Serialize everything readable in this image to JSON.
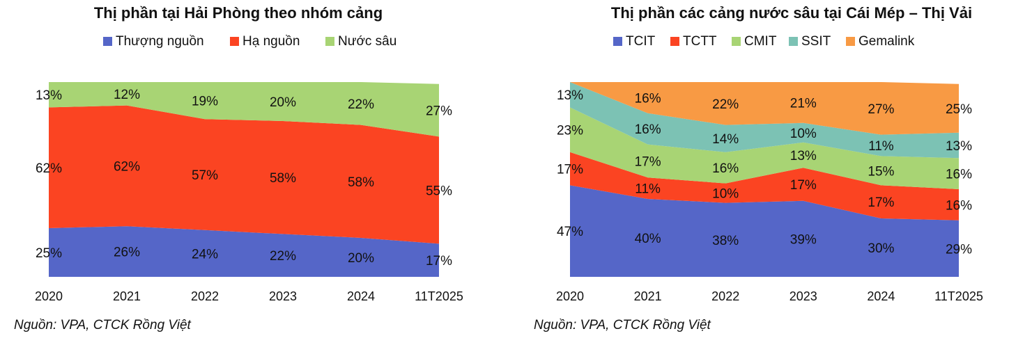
{
  "chart_data": [
    {
      "type": "area",
      "stacked": true,
      "title": "Thị phần tại Hải Phòng theo nhóm cảng",
      "categories": [
        "2020",
        "2021",
        "2022",
        "2023",
        "2024",
        "11T2025"
      ],
      "series": [
        {
          "name": "Thượng nguồn",
          "color": "#5566c8",
          "values": [
            25,
            26,
            24,
            22,
            20,
            17
          ],
          "labels": [
            "25%",
            "26%",
            "24%",
            "22%",
            "20%",
            "17%"
          ]
        },
        {
          "name": "Hạ nguồn",
          "color": "#fb4422",
          "values": [
            62,
            62,
            57,
            58,
            58,
            55
          ],
          "labels": [
            "62%",
            "62%",
            "57%",
            "58%",
            "58%",
            "55%"
          ]
        },
        {
          "name": "Nước sâu",
          "color": "#a8d474",
          "values": [
            13,
            12,
            19,
            20,
            22,
            27
          ],
          "labels": [
            "13%",
            "12%",
            "19%",
            "20%",
            "22%",
            "27%"
          ]
        }
      ],
      "ylim": [
        0,
        100
      ],
      "source": "Nguồn: VPA, CTCK Rồng Việt"
    },
    {
      "type": "area",
      "stacked": true,
      "title": "Thị phần các cảng nước sâu tại Cái Mép – Thị Vải",
      "categories": [
        "2020",
        "2021",
        "2022",
        "2023",
        "2024",
        "11T2025"
      ],
      "series": [
        {
          "name": "TCIT",
          "color": "#5566c8",
          "values": [
            47,
            40,
            38,
            39,
            30,
            29
          ],
          "labels": [
            "47%",
            "40%",
            "38%",
            "39%",
            "30%",
            "29%"
          ]
        },
        {
          "name": "TCTT",
          "color": "#fb4422",
          "values": [
            17,
            11,
            10,
            17,
            17,
            16
          ],
          "labels": [
            "17%",
            "11%",
            "10%",
            "17%",
            "17%",
            "16%"
          ]
        },
        {
          "name": "CMIT",
          "color": "#a8d474",
          "values": [
            23,
            17,
            16,
            13,
            15,
            16
          ],
          "labels": [
            "23%",
            "17%",
            "16%",
            "13%",
            "15%",
            "16%"
          ]
        },
        {
          "name": "SSIT",
          "color": "#7cc2b4",
          "values": [
            13,
            16,
            14,
            10,
            11,
            13
          ],
          "labels": [
            "13%",
            "16%",
            "14%",
            "10%",
            "11%",
            "13%"
          ]
        },
        {
          "name": "Gemalink",
          "color": "#f89a44",
          "values": [
            0,
            16,
            22,
            21,
            27,
            25
          ],
          "labels": [
            "",
            "16%",
            "22%",
            "21%",
            "27%",
            "25%"
          ]
        }
      ],
      "ylim": [
        0,
        100
      ],
      "source": "Nguồn: VPA, CTCK Rồng Việt"
    }
  ]
}
